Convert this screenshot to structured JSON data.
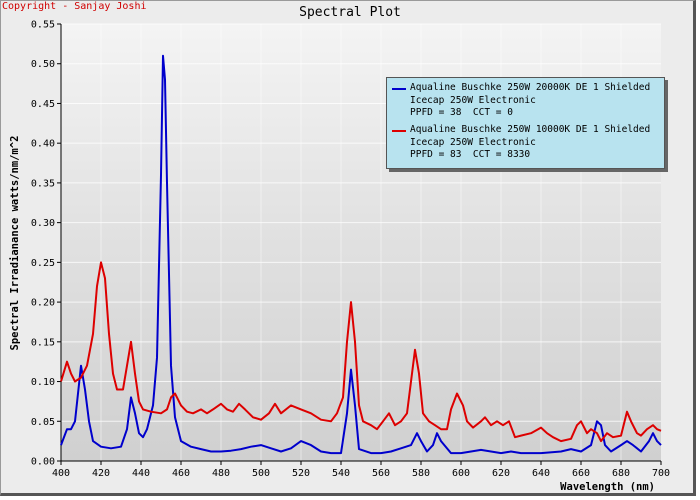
{
  "copyright": "Copyright - Sanjay Joshi",
  "chart_data": {
    "type": "line",
    "title": "Spectral Plot",
    "xlabel": "Wavelength (nm)",
    "ylabel": "Spectral Irradianance watts/nm/m^2",
    "xlim": [
      400,
      700
    ],
    "ylim": [
      0,
      0.55
    ],
    "x_ticks": [
      400,
      420,
      440,
      460,
      480,
      500,
      520,
      540,
      560,
      580,
      600,
      620,
      640,
      660,
      680,
      700
    ],
    "y_ticks": [
      0.0,
      0.05,
      0.1,
      0.15,
      0.2,
      0.25,
      0.3,
      0.35,
      0.4,
      0.45,
      0.5,
      0.55
    ],
    "y_tick_labels": [
      "0.00",
      "0.05",
      "0.10",
      "0.15",
      "0.20",
      "0.25",
      "0.30",
      "0.35",
      "0.40",
      "0.45",
      "0.50",
      "0.55"
    ],
    "grid": true,
    "legend_position": "top-right",
    "series": [
      {
        "name": "Aqualine Buschke 250W 20000K DE 1 Shielded",
        "legend_lines": [
          "Icecap 250W Electronic",
          "PPFD = 38  CCT = 0"
        ],
        "color": "#0000cc",
        "points": [
          [
            400,
            0.02
          ],
          [
            403,
            0.04
          ],
          [
            405,
            0.04
          ],
          [
            407,
            0.05
          ],
          [
            410,
            0.12
          ],
          [
            412,
            0.09
          ],
          [
            414,
            0.05
          ],
          [
            416,
            0.025
          ],
          [
            420,
            0.018
          ],
          [
            425,
            0.016
          ],
          [
            430,
            0.018
          ],
          [
            433,
            0.04
          ],
          [
            435,
            0.08
          ],
          [
            437,
            0.06
          ],
          [
            439,
            0.035
          ],
          [
            441,
            0.03
          ],
          [
            443,
            0.04
          ],
          [
            446,
            0.07
          ],
          [
            448,
            0.13
          ],
          [
            450,
            0.36
          ],
          [
            451,
            0.51
          ],
          [
            452,
            0.48
          ],
          [
            453,
            0.35
          ],
          [
            455,
            0.12
          ],
          [
            457,
            0.055
          ],
          [
            460,
            0.025
          ],
          [
            465,
            0.018
          ],
          [
            470,
            0.015
          ],
          [
            475,
            0.012
          ],
          [
            480,
            0.012
          ],
          [
            485,
            0.013
          ],
          [
            490,
            0.015
          ],
          [
            495,
            0.018
          ],
          [
            500,
            0.02
          ],
          [
            505,
            0.016
          ],
          [
            510,
            0.012
          ],
          [
            515,
            0.016
          ],
          [
            520,
            0.025
          ],
          [
            525,
            0.02
          ],
          [
            530,
            0.012
          ],
          [
            535,
            0.01
          ],
          [
            540,
            0.01
          ],
          [
            543,
            0.06
          ],
          [
            545,
            0.115
          ],
          [
            547,
            0.07
          ],
          [
            549,
            0.015
          ],
          [
            555,
            0.01
          ],
          [
            560,
            0.01
          ],
          [
            565,
            0.012
          ],
          [
            570,
            0.016
          ],
          [
            575,
            0.02
          ],
          [
            578,
            0.035
          ],
          [
            580,
            0.025
          ],
          [
            583,
            0.012
          ],
          [
            586,
            0.02
          ],
          [
            588,
            0.035
          ],
          [
            590,
            0.025
          ],
          [
            595,
            0.01
          ],
          [
            600,
            0.01
          ],
          [
            605,
            0.012
          ],
          [
            610,
            0.014
          ],
          [
            615,
            0.012
          ],
          [
            620,
            0.01
          ],
          [
            625,
            0.012
          ],
          [
            630,
            0.01
          ],
          [
            640,
            0.01
          ],
          [
            650,
            0.012
          ],
          [
            655,
            0.015
          ],
          [
            660,
            0.012
          ],
          [
            665,
            0.02
          ],
          [
            668,
            0.05
          ],
          [
            670,
            0.045
          ],
          [
            672,
            0.02
          ],
          [
            675,
            0.012
          ],
          [
            680,
            0.02
          ],
          [
            683,
            0.025
          ],
          [
            686,
            0.02
          ],
          [
            690,
            0.012
          ],
          [
            694,
            0.025
          ],
          [
            696,
            0.035
          ],
          [
            698,
            0.025
          ],
          [
            700,
            0.02
          ]
        ]
      },
      {
        "name": "Aqualine Buschke 250W 10000K DE 1 Shielded",
        "legend_lines": [
          "Icecap 250W Electronic",
          "PPFD = 83  CCT = 8330"
        ],
        "color": "#dd0000",
        "points": [
          [
            400,
            0.1
          ],
          [
            403,
            0.125
          ],
          [
            405,
            0.11
          ],
          [
            407,
            0.1
          ],
          [
            410,
            0.105
          ],
          [
            413,
            0.12
          ],
          [
            416,
            0.16
          ],
          [
            418,
            0.22
          ],
          [
            420,
            0.25
          ],
          [
            422,
            0.23
          ],
          [
            424,
            0.16
          ],
          [
            426,
            0.11
          ],
          [
            428,
            0.09
          ],
          [
            431,
            0.09
          ],
          [
            433,
            0.12
          ],
          [
            435,
            0.15
          ],
          [
            437,
            0.11
          ],
          [
            439,
            0.075
          ],
          [
            441,
            0.065
          ],
          [
            445,
            0.062
          ],
          [
            450,
            0.06
          ],
          [
            453,
            0.065
          ],
          [
            455,
            0.08
          ],
          [
            457,
            0.085
          ],
          [
            460,
            0.07
          ],
          [
            463,
            0.062
          ],
          [
            466,
            0.06
          ],
          [
            470,
            0.065
          ],
          [
            473,
            0.06
          ],
          [
            476,
            0.065
          ],
          [
            480,
            0.072
          ],
          [
            483,
            0.065
          ],
          [
            486,
            0.062
          ],
          [
            489,
            0.072
          ],
          [
            492,
            0.065
          ],
          [
            496,
            0.055
          ],
          [
            500,
            0.052
          ],
          [
            504,
            0.06
          ],
          [
            507,
            0.072
          ],
          [
            510,
            0.06
          ],
          [
            515,
            0.07
          ],
          [
            520,
            0.065
          ],
          [
            525,
            0.06
          ],
          [
            530,
            0.052
          ],
          [
            535,
            0.05
          ],
          [
            538,
            0.06
          ],
          [
            541,
            0.08
          ],
          [
            543,
            0.15
          ],
          [
            545,
            0.2
          ],
          [
            547,
            0.15
          ],
          [
            549,
            0.07
          ],
          [
            551,
            0.05
          ],
          [
            555,
            0.045
          ],
          [
            558,
            0.04
          ],
          [
            561,
            0.05
          ],
          [
            564,
            0.06
          ],
          [
            567,
            0.045
          ],
          [
            570,
            0.05
          ],
          [
            573,
            0.06
          ],
          [
            575,
            0.1
          ],
          [
            577,
            0.14
          ],
          [
            579,
            0.11
          ],
          [
            581,
            0.06
          ],
          [
            584,
            0.05
          ],
          [
            587,
            0.045
          ],
          [
            590,
            0.04
          ],
          [
            593,
            0.04
          ],
          [
            595,
            0.065
          ],
          [
            598,
            0.085
          ],
          [
            601,
            0.07
          ],
          [
            603,
            0.05
          ],
          [
            606,
            0.042
          ],
          [
            610,
            0.05
          ],
          [
            612,
            0.055
          ],
          [
            615,
            0.045
          ],
          [
            618,
            0.05
          ],
          [
            621,
            0.045
          ],
          [
            624,
            0.05
          ],
          [
            627,
            0.03
          ],
          [
            630,
            0.032
          ],
          [
            635,
            0.035
          ],
          [
            640,
            0.042
          ],
          [
            643,
            0.035
          ],
          [
            646,
            0.03
          ],
          [
            650,
            0.025
          ],
          [
            655,
            0.028
          ],
          [
            658,
            0.045
          ],
          [
            660,
            0.05
          ],
          [
            663,
            0.035
          ],
          [
            665,
            0.04
          ],
          [
            668,
            0.035
          ],
          [
            670,
            0.025
          ],
          [
            673,
            0.035
          ],
          [
            676,
            0.03
          ],
          [
            680,
            0.032
          ],
          [
            683,
            0.062
          ],
          [
            685,
            0.05
          ],
          [
            688,
            0.035
          ],
          [
            690,
            0.032
          ],
          [
            693,
            0.04
          ],
          [
            696,
            0.045
          ],
          [
            698,
            0.04
          ],
          [
            700,
            0.038
          ]
        ]
      }
    ]
  }
}
